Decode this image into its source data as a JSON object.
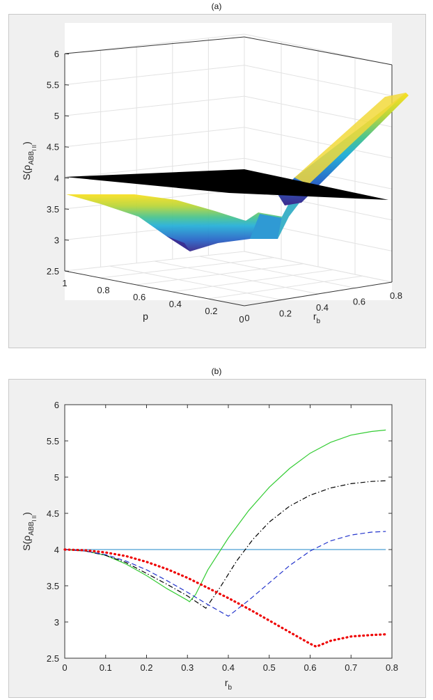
{
  "panels": [
    {
      "label": "(a)"
    },
    {
      "label": "(b)"
    }
  ],
  "chart_data": [
    {
      "type": "surface3d",
      "title": "(a)",
      "xlabel": "p",
      "ylabel": "r_b",
      "zlabel": "S(ρ_AB_I B_II)",
      "z_ticks": [
        "2.5",
        "3",
        "3.5",
        "4",
        "4.5",
        "5",
        "5.5",
        "6"
      ],
      "p_ticks": [
        "1",
        "0.8",
        "0.6",
        "0.4",
        "0.2",
        "0"
      ],
      "rb_ticks": [
        "0",
        "0.2",
        "0.4",
        "0.6",
        "0.8"
      ],
      "zlim": [
        2.5,
        6
      ],
      "plane_z": 4,
      "colormap": "parula",
      "plane_color": "#000000"
    },
    {
      "type": "line",
      "title": "(b)",
      "xlabel": "r_b",
      "ylabel": "S(ρ_AB_I B_II)",
      "xlim": [
        0,
        0.8
      ],
      "ylim": [
        2.5,
        6
      ],
      "x_ticks": [
        "0",
        "0.1",
        "0.2",
        "0.3",
        "0.4",
        "0.5",
        "0.6",
        "0.7",
        "0.8"
      ],
      "y_ticks": [
        "2.5",
        "3",
        "3.5",
        "4",
        "4.5",
        "5",
        "5.5",
        "6"
      ],
      "grid": false,
      "series": [
        {
          "style": "solid",
          "color": "#4a9fd4",
          "x": [
            0,
            0.785
          ],
          "y": [
            4.0,
            4.0
          ]
        },
        {
          "style": "solid",
          "color": "#33cc33",
          "x": [
            0,
            0.05,
            0.1,
            0.15,
            0.2,
            0.25,
            0.3,
            0.305,
            0.32,
            0.35,
            0.4,
            0.45,
            0.5,
            0.55,
            0.6,
            0.65,
            0.7,
            0.75,
            0.785
          ],
          "y": [
            4.0,
            3.98,
            3.92,
            3.8,
            3.64,
            3.46,
            3.3,
            3.28,
            3.38,
            3.72,
            4.16,
            4.54,
            4.86,
            5.12,
            5.33,
            5.48,
            5.58,
            5.63,
            5.65
          ]
        },
        {
          "style": "dashdot",
          "color": "#000000",
          "x": [
            0,
            0.05,
            0.1,
            0.15,
            0.2,
            0.25,
            0.3,
            0.345,
            0.38,
            0.42,
            0.46,
            0.5,
            0.55,
            0.6,
            0.65,
            0.7,
            0.75,
            0.785
          ],
          "y": [
            4.0,
            3.98,
            3.92,
            3.82,
            3.67,
            3.52,
            3.36,
            3.19,
            3.48,
            3.84,
            4.14,
            4.38,
            4.6,
            4.75,
            4.85,
            4.91,
            4.94,
            4.95
          ]
        },
        {
          "style": "dashed",
          "color": "#2233cc",
          "x": [
            0,
            0.05,
            0.1,
            0.15,
            0.2,
            0.25,
            0.3,
            0.35,
            0.4,
            0.45,
            0.5,
            0.55,
            0.6,
            0.65,
            0.7,
            0.75,
            0.785
          ],
          "y": [
            4.0,
            3.98,
            3.93,
            3.84,
            3.72,
            3.57,
            3.41,
            3.24,
            3.08,
            3.3,
            3.54,
            3.78,
            3.98,
            4.12,
            4.2,
            4.24,
            4.25
          ]
        },
        {
          "style": "dotted",
          "color": "#ee0000",
          "x": [
            0,
            0.05,
            0.1,
            0.15,
            0.2,
            0.25,
            0.3,
            0.35,
            0.4,
            0.45,
            0.5,
            0.55,
            0.6,
            0.615,
            0.65,
            0.7,
            0.75,
            0.785
          ],
          "y": [
            4.0,
            3.99,
            3.96,
            3.91,
            3.83,
            3.73,
            3.61,
            3.47,
            3.33,
            3.18,
            3.02,
            2.86,
            2.7,
            2.66,
            2.74,
            2.8,
            2.82,
            2.83
          ]
        }
      ]
    }
  ]
}
